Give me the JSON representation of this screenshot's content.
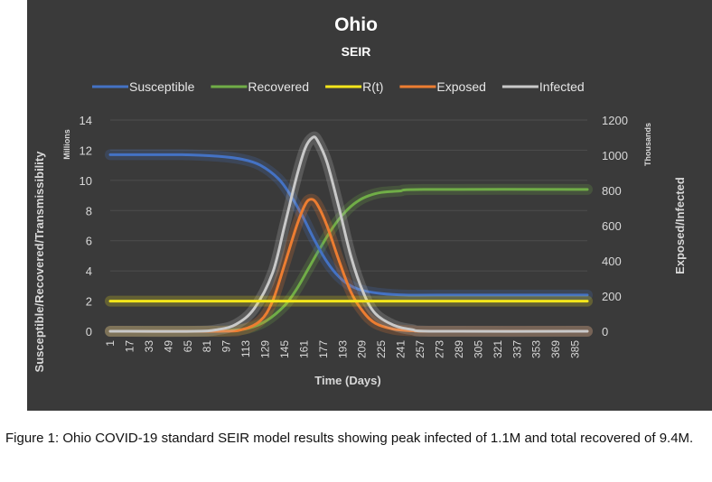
{
  "chart_data": {
    "type": "line",
    "title": "Ohio",
    "subtitle": "SEIR",
    "xlabel": "Time (Days)",
    "ylabel_left": "Susceptible/Recovered/Transmissibility",
    "ylabel_left_unit": "Millions",
    "ylabel_right": "Exposed/Infected",
    "ylabel_right_unit": "Thousands",
    "x_ticks": [
      1,
      17,
      33,
      49,
      65,
      81,
      97,
      113,
      129,
      145,
      161,
      177,
      193,
      209,
      225,
      241,
      257,
      273,
      289,
      305,
      321,
      337,
      353,
      369,
      385
    ],
    "xlim": [
      1,
      395
    ],
    "ylim_left": [
      0,
      14
    ],
    "y_ticks_left": [
      0,
      2,
      4,
      6,
      8,
      10,
      12,
      14
    ],
    "ylim_right": [
      0,
      1200
    ],
    "y_ticks_right": [
      0,
      200,
      400,
      600,
      800,
      1000,
      1200
    ],
    "legend_position": "top",
    "series": [
      {
        "name": "Susceptible",
        "axis": "left",
        "color": "#4472c4",
        "points": [
          [
            1,
            11.7
          ],
          [
            60,
            11.7
          ],
          [
            90,
            11.6
          ],
          [
            110,
            11.4
          ],
          [
            125,
            11.0
          ],
          [
            140,
            10.1
          ],
          [
            150,
            9.0
          ],
          [
            160,
            7.6
          ],
          [
            170,
            6.0
          ],
          [
            180,
            4.6
          ],
          [
            190,
            3.6
          ],
          [
            200,
            3.0
          ],
          [
            210,
            2.7
          ],
          [
            225,
            2.5
          ],
          [
            245,
            2.4
          ],
          [
            270,
            2.4
          ],
          [
            395,
            2.4
          ]
        ]
      },
      {
        "name": "Recovered",
        "axis": "left",
        "color": "#70ad47",
        "points": [
          [
            1,
            0
          ],
          [
            80,
            0
          ],
          [
            100,
            0.05
          ],
          [
            115,
            0.2
          ],
          [
            130,
            0.7
          ],
          [
            145,
            1.7
          ],
          [
            155,
            2.8
          ],
          [
            165,
            4.2
          ],
          [
            175,
            5.6
          ],
          [
            185,
            6.9
          ],
          [
            195,
            7.9
          ],
          [
            205,
            8.6
          ],
          [
            215,
            9.0
          ],
          [
            225,
            9.2
          ],
          [
            240,
            9.3
          ],
          [
            260,
            9.4
          ],
          [
            395,
            9.4
          ]
        ]
      },
      {
        "name": "R(t)",
        "axis": "left",
        "color": "#f4e61b",
        "points": [
          [
            1,
            2.0
          ],
          [
            395,
            2.0
          ]
        ]
      },
      {
        "name": "Exposed",
        "axis": "right",
        "color": "#ed7d31",
        "points": [
          [
            1,
            0
          ],
          [
            90,
            0
          ],
          [
            110,
            10
          ],
          [
            125,
            60
          ],
          [
            135,
            170
          ],
          [
            145,
            380
          ],
          [
            155,
            600
          ],
          [
            162,
            720
          ],
          [
            167,
            750
          ],
          [
            172,
            720
          ],
          [
            180,
            600
          ],
          [
            190,
            400
          ],
          [
            200,
            220
          ],
          [
            210,
            110
          ],
          [
            220,
            45
          ],
          [
            235,
            12
          ],
          [
            250,
            3
          ],
          [
            270,
            0
          ],
          [
            395,
            0
          ]
        ]
      },
      {
        "name": "Infected",
        "axis": "right",
        "color": "#c9c9c9",
        "points": [
          [
            1,
            0
          ],
          [
            70,
            0
          ],
          [
            90,
            10
          ],
          [
            105,
            40
          ],
          [
            120,
            130
          ],
          [
            135,
            330
          ],
          [
            145,
            600
          ],
          [
            155,
            880
          ],
          [
            162,
            1040
          ],
          [
            168,
            1100
          ],
          [
            172,
            1085
          ],
          [
            180,
            960
          ],
          [
            190,
            700
          ],
          [
            200,
            420
          ],
          [
            210,
            220
          ],
          [
            220,
            100
          ],
          [
            235,
            35
          ],
          [
            250,
            10
          ],
          [
            270,
            0
          ],
          [
            395,
            0
          ]
        ]
      }
    ]
  },
  "caption": "Figure 1: Ohio COVID-19 standard SEIR model results showing peak infected of 1.1M and total recovered of 9.4M."
}
